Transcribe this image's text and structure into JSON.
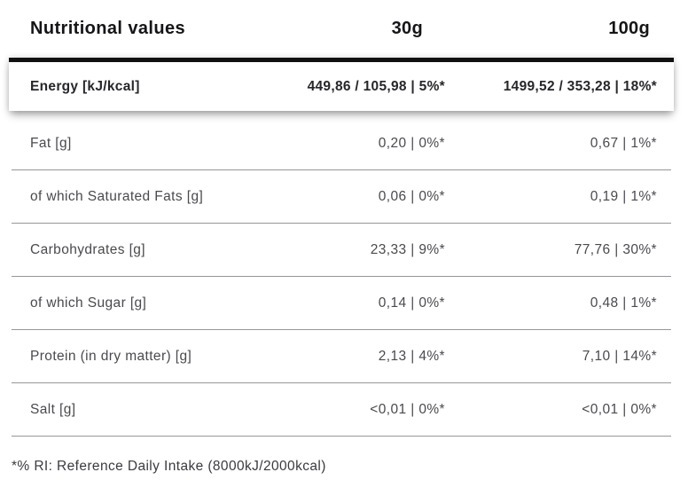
{
  "header": {
    "title": "Nutritional values",
    "col_30": "30g",
    "col_100": "100g"
  },
  "energy": {
    "label": "Energy [kJ/kcal]",
    "v30": "449,86 / 105,98 | 5%*",
    "v100": "1499,52 / 353,28 | 18%*"
  },
  "rows": [
    {
      "label": "Fat [g]",
      "v30": "0,20 | 0%*",
      "v100": "0,67 | 1%*"
    },
    {
      "label": "of which Saturated Fats [g]",
      "v30": "0,06 | 0%*",
      "v100": "0,19 | 1%*"
    },
    {
      "label": "Carbohydrates [g]",
      "v30": "23,33 | 9%*",
      "v100": "77,76 | 30%*"
    },
    {
      "label": "of which Sugar [g]",
      "v30": "0,14 | 0%*",
      "v100": "0,48 | 1%*"
    },
    {
      "label": "Protein (in dry matter) [g]",
      "v30": "2,13 | 4%*",
      "v100": "7,10 | 14%*"
    },
    {
      "label": "Salt [g]",
      "v30": "<0,01 | 0%*",
      "v100": "<0,01 | 0%*"
    }
  ],
  "footnote": "*% RI: Reference Daily Intake (8000kJ/2000kcal)",
  "colors": {
    "background": "#ffffff",
    "heading_text": "#151518",
    "energy_text": "#26262b",
    "row_text": "#4a4a4f",
    "divider": "#97979b",
    "accent_bar": "#111111"
  }
}
